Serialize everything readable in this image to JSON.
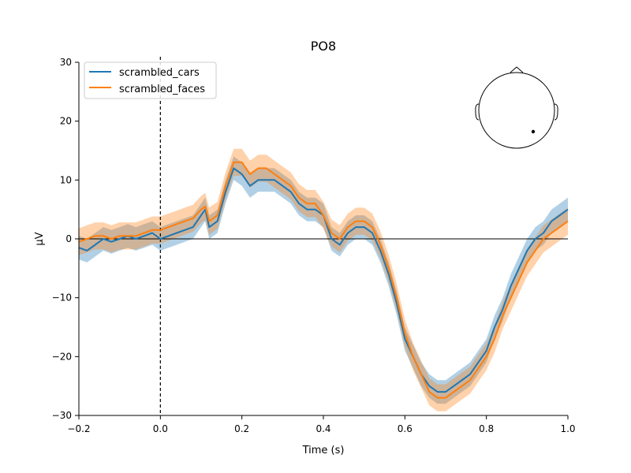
{
  "chart_data": {
    "type": "line",
    "title": "PO8",
    "xlabel": "Time (s)",
    "ylabel": "µV",
    "xlim": [
      -0.2,
      1.0
    ],
    "ylim": [
      -30,
      30
    ],
    "xticks": [
      -0.2,
      0.0,
      0.2,
      0.4,
      0.6,
      0.8,
      1.0
    ],
    "xtick_labels": [
      "−0.2",
      "0.0",
      "0.2",
      "0.4",
      "0.6",
      "0.8",
      "1.0"
    ],
    "yticks": [
      -30,
      -20,
      -10,
      0,
      10,
      20,
      30
    ],
    "ytick_labels": [
      "−30",
      "−20",
      "−10",
      "0",
      "10",
      "20",
      "30"
    ],
    "legend_position": "top-left",
    "zero_line": true,
    "stimulus_onset_line": 0.0,
    "sensor_inset": "top-right",
    "series": [
      {
        "name": "scrambled_cars",
        "color": "#1f77b4",
        "x": [
          -0.2,
          -0.18,
          -0.16,
          -0.14,
          -0.12,
          -0.1,
          -0.08,
          -0.06,
          -0.04,
          -0.02,
          0.0,
          0.02,
          0.04,
          0.06,
          0.08,
          0.1,
          0.11,
          0.12,
          0.14,
          0.16,
          0.18,
          0.2,
          0.22,
          0.24,
          0.26,
          0.28,
          0.3,
          0.32,
          0.34,
          0.36,
          0.38,
          0.4,
          0.42,
          0.44,
          0.46,
          0.48,
          0.5,
          0.52,
          0.54,
          0.56,
          0.58,
          0.6,
          0.62,
          0.64,
          0.66,
          0.68,
          0.7,
          0.72,
          0.74,
          0.76,
          0.78,
          0.8,
          0.82,
          0.84,
          0.86,
          0.88,
          0.9,
          0.92,
          0.94,
          0.96,
          0.98,
          1.0
        ],
        "values": [
          -1.5,
          -2,
          -1,
          0,
          -0.5,
          0,
          0.5,
          0,
          0.5,
          1,
          0,
          0.5,
          1,
          1.5,
          2,
          4,
          5,
          2,
          3,
          8,
          12,
          11,
          9,
          10,
          10,
          10,
          9,
          8,
          6,
          5,
          5,
          4,
          0,
          -1,
          1,
          2,
          2,
          1,
          -2,
          -6,
          -11,
          -17,
          -20,
          -23,
          -25,
          -26,
          -26,
          -25,
          -24,
          -23,
          -21,
          -19,
          -15,
          -12,
          -8,
          -5,
          -2,
          0,
          1,
          3,
          4,
          5
        ],
        "band_halfwidth": 2.0
      },
      {
        "name": "scrambled_faces",
        "color": "#ff7f0e",
        "x": [
          -0.2,
          -0.18,
          -0.16,
          -0.14,
          -0.12,
          -0.1,
          -0.08,
          -0.06,
          -0.04,
          -0.02,
          0.0,
          0.02,
          0.04,
          0.06,
          0.08,
          0.1,
          0.11,
          0.12,
          0.14,
          0.16,
          0.18,
          0.2,
          0.22,
          0.24,
          0.26,
          0.28,
          0.3,
          0.32,
          0.34,
          0.36,
          0.38,
          0.4,
          0.42,
          0.44,
          0.46,
          0.48,
          0.5,
          0.52,
          0.54,
          0.56,
          0.58,
          0.6,
          0.62,
          0.64,
          0.66,
          0.68,
          0.7,
          0.72,
          0.74,
          0.76,
          0.78,
          0.8,
          0.82,
          0.84,
          0.86,
          0.88,
          0.9,
          0.92,
          0.94,
          0.96,
          0.98,
          1.0
        ],
        "values": [
          -0.5,
          0,
          0.5,
          0.5,
          0,
          0.5,
          0.5,
          0.5,
          1,
          1.5,
          1.5,
          2,
          2.5,
          3,
          3.5,
          5,
          5.5,
          3,
          4,
          9,
          13,
          13,
          11,
          12,
          12,
          11,
          10,
          9,
          7,
          6,
          6,
          4,
          1,
          0,
          2,
          3,
          3,
          2,
          -1,
          -5,
          -10,
          -16,
          -20,
          -23,
          -26,
          -27,
          -27,
          -26,
          -25,
          -24,
          -22,
          -20,
          -17,
          -13,
          -10,
          -7,
          -4,
          -2,
          0,
          1,
          2,
          3
        ],
        "band_halfwidth": 2.3
      }
    ]
  }
}
